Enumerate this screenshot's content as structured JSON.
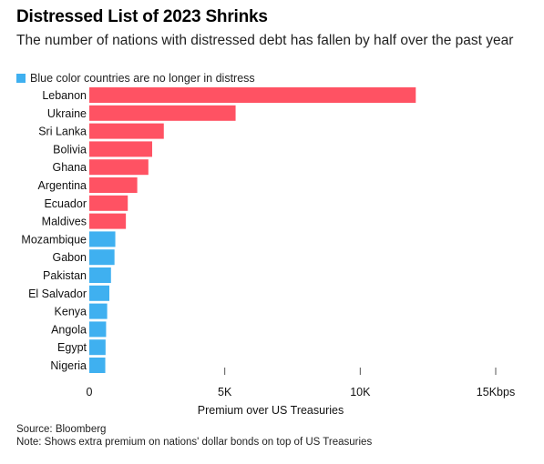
{
  "chart_data": {
    "type": "bar",
    "orientation": "horizontal",
    "title": "Distressed List of 2023 Shrinks",
    "subtitle": "The number of nations with distressed debt has fallen by half over the past year",
    "legend": [
      {
        "label": "Blue color countries are no longer in distress",
        "color": "#3fb0f0"
      }
    ],
    "categories": [
      "Lebanon",
      "Ukraine",
      "Sri Lanka",
      "Bolivia",
      "Ghana",
      "Argentina",
      "Ecuador",
      "Maldives",
      "Mozambique",
      "Gabon",
      "Pakistan",
      "El Salvador",
      "Kenya",
      "Angola",
      "Egypt",
      "Nigeria"
    ],
    "values": [
      12050,
      5400,
      2750,
      2320,
      2180,
      1770,
      1420,
      1350,
      960,
      930,
      800,
      740,
      660,
      620,
      600,
      590
    ],
    "colors": [
      "#ff5263",
      "#ff5263",
      "#ff5263",
      "#ff5263",
      "#ff5263",
      "#ff5263",
      "#ff5263",
      "#ff5263",
      "#3fb0f0",
      "#3fb0f0",
      "#3fb0f0",
      "#3fb0f0",
      "#3fb0f0",
      "#3fb0f0",
      "#3fb0f0",
      "#3fb0f0"
    ],
    "xticks": [
      0,
      5000,
      10000,
      15000
    ],
    "xtick_labels": [
      "0",
      "5K",
      "10K",
      "15Kbps"
    ],
    "xlabel": "Premium over US Treasuries",
    "ylabel": "",
    "xlim": [
      0,
      15000
    ],
    "grid": false
  },
  "footer": {
    "source": "Source: Bloomberg",
    "note": "Note: Shows extra premium on nations' dollar bonds on top of US Treasuries"
  }
}
